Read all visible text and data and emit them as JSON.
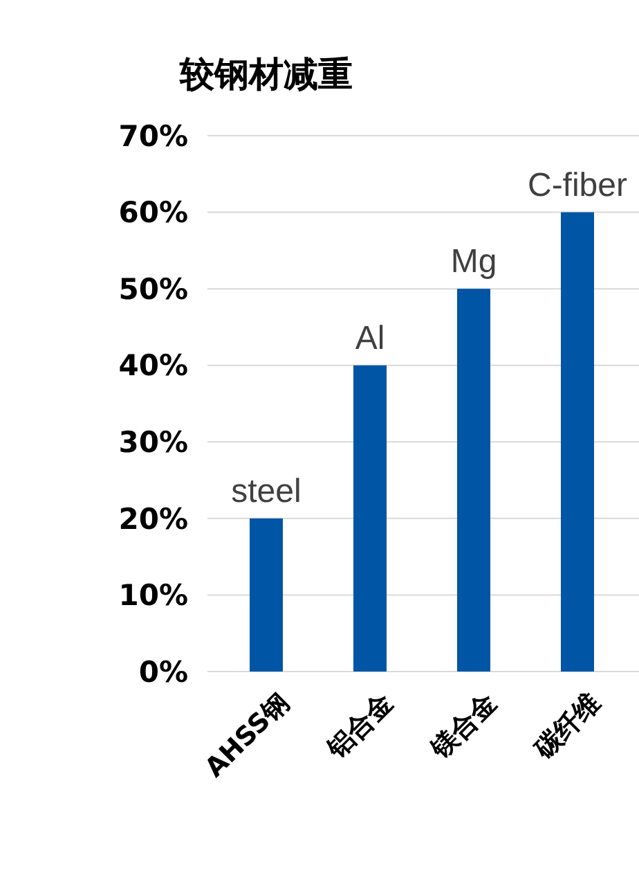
{
  "chart_data": {
    "type": "bar",
    "title": "较钢材减重",
    "categories": [
      "AHSS钢",
      "铝合金",
      "镁合金",
      "碳纤维"
    ],
    "values": [
      20,
      40,
      50,
      60
    ],
    "color": "#0055a5",
    "ylim": [
      0,
      70
    ],
    "yticks": [
      {
        "value": 0,
        "label": "0%"
      },
      {
        "value": 10,
        "label": "10%"
      },
      {
        "value": 20,
        "label": "20%"
      },
      {
        "value": 30,
        "label": "30%"
      },
      {
        "value": 40,
        "label": "40%"
      },
      {
        "value": 50,
        "label": "50%"
      },
      {
        "value": 60,
        "label": "60%"
      },
      {
        "value": 70,
        "label": "70%"
      }
    ],
    "grid": "y",
    "annotations": [
      {
        "text": "steel",
        "x": "AHSS钢",
        "y": 20
      },
      {
        "text": "Al",
        "x": "铝合金",
        "y": 40
      },
      {
        "text": "Mg",
        "x": "镁合金",
        "y": 50
      },
      {
        "text": "C-fiber",
        "x": "碳纤维",
        "y": 60
      }
    ]
  }
}
